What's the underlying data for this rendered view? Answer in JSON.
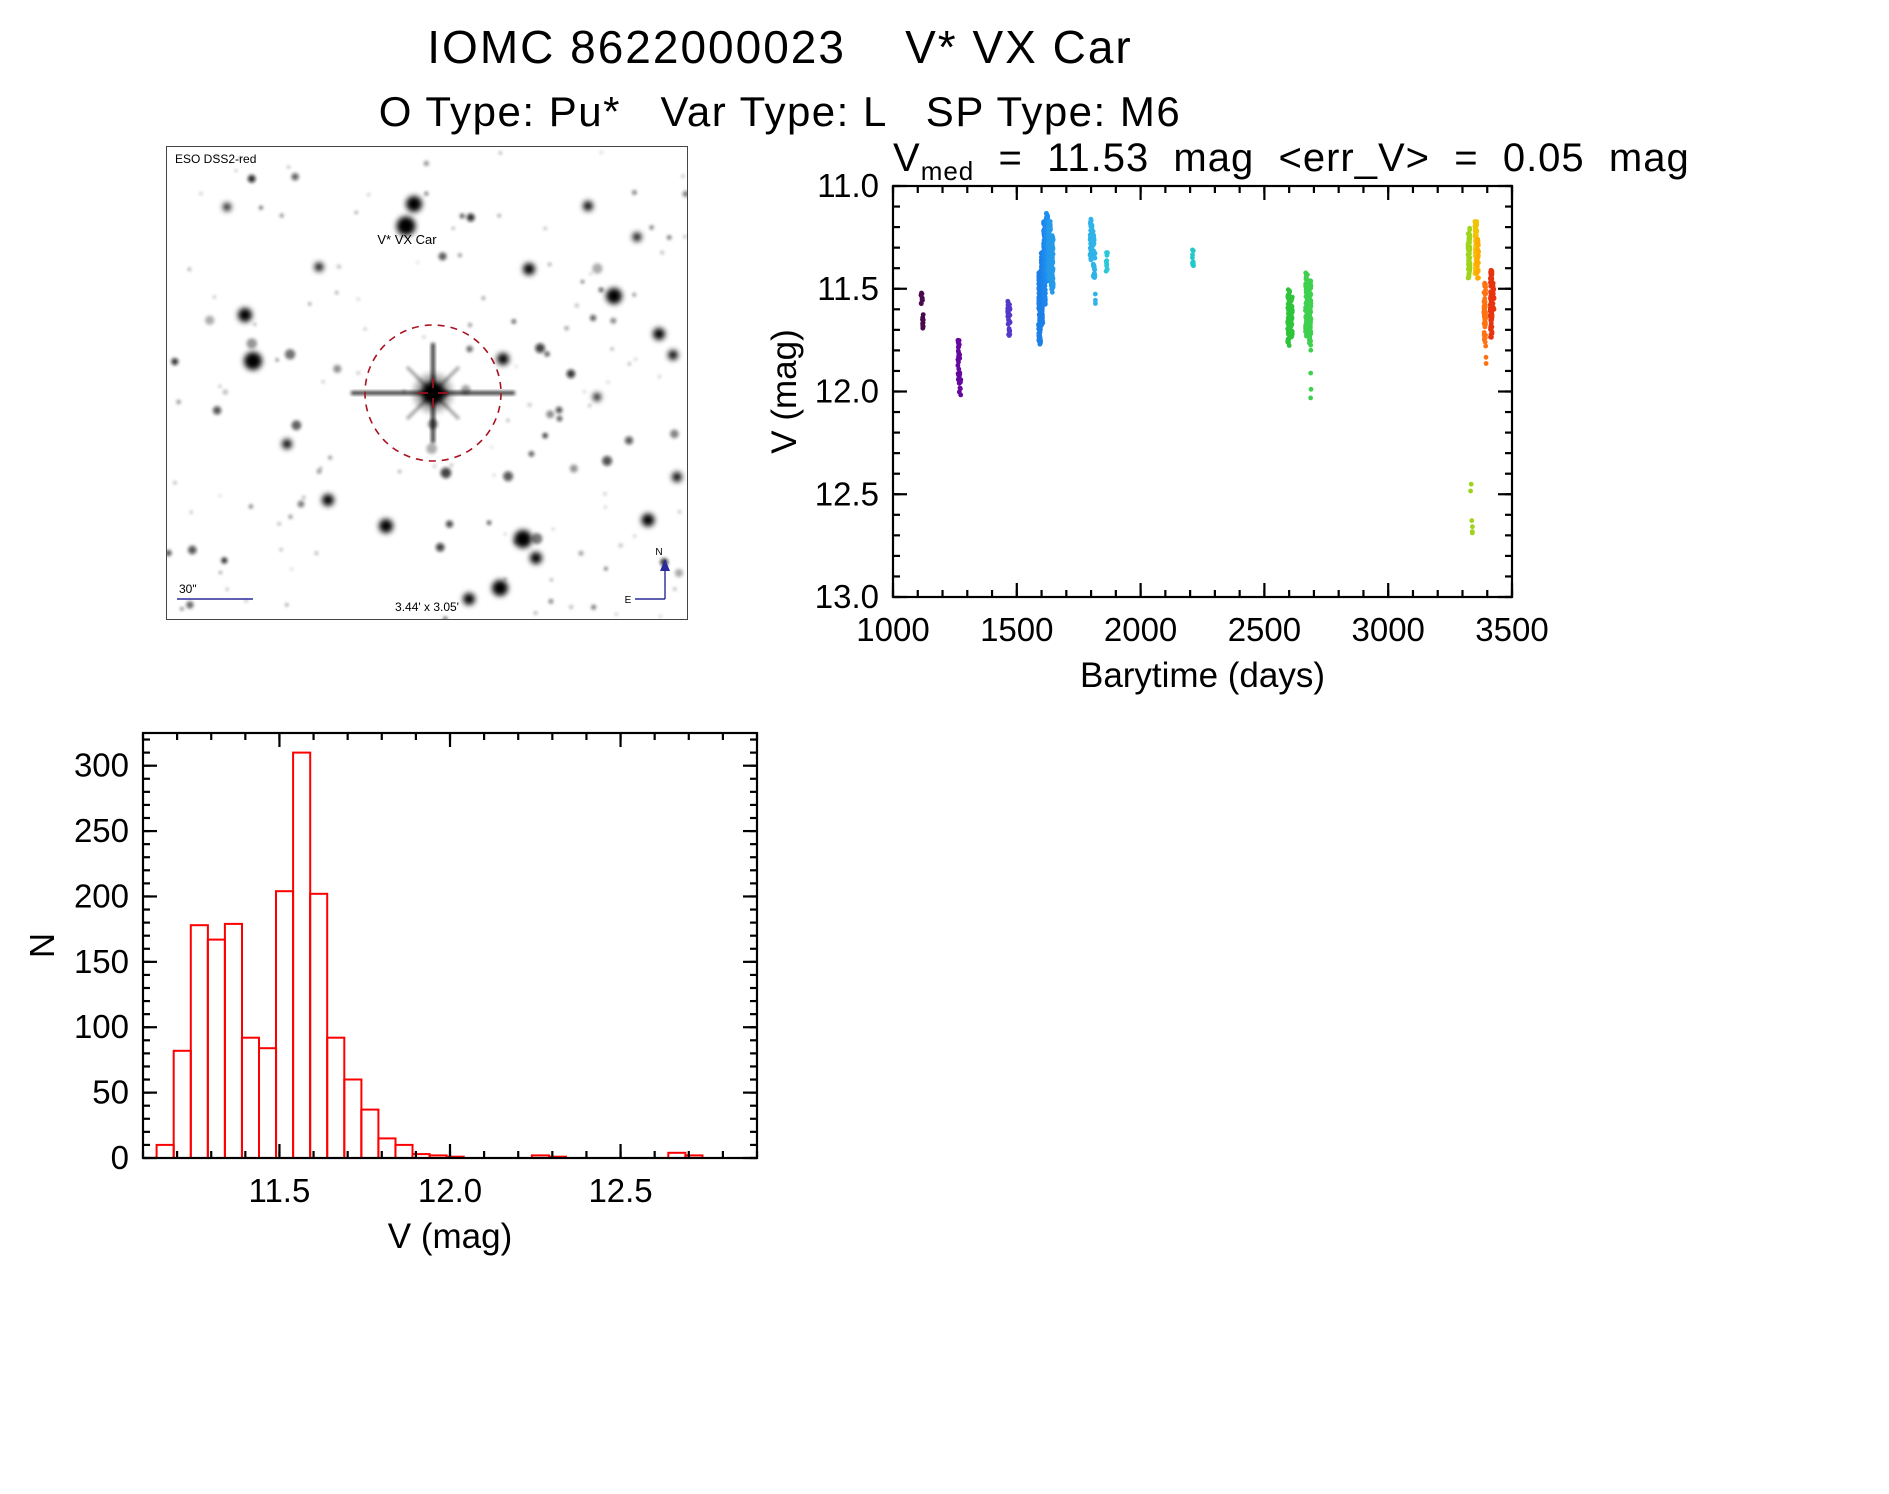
{
  "page": {
    "title": "IOMC 8622000023    V* VX Car",
    "subtitle": "O Type: Pu*   Var Type: L   SP Type: M6"
  },
  "finder": {
    "survey_label": "ESO DSS2-red",
    "target_label": "V* VX Car",
    "scale_label": "30\"",
    "size_label": "3.44' x 3.05'",
    "compass_north": "N",
    "compass_east": "E",
    "accent_color": "#aa1122",
    "annotation_color": "#2a2a9a"
  },
  "chart_data": [
    {
      "type": "scatter",
      "title_main": "V",
      "title_sub": "med",
      "title_rest": "  =  11.53  mag  <err_V>  =  0.05  mag",
      "xlabel": "Barytime  (days)",
      "ylabel": "V  (mag)",
      "xlim": [
        1000,
        3500
      ],
      "ylim": [
        11.0,
        13.0
      ],
      "xticks": [
        1000,
        1500,
        2000,
        2500,
        3000,
        3500
      ],
      "yticks": [
        11.0,
        11.5,
        12.0,
        12.5,
        13.0
      ],
      "x_minor": 100,
      "y_minor": 0.1,
      "y_tick_decimals": 1,
      "grid": false,
      "legend": "none",
      "clusters": [
        {
          "x": 1116,
          "dx": 6,
          "v1": 11.51,
          "v2": 11.58,
          "n": 10,
          "color": "#4a0a50"
        },
        {
          "x": 1120,
          "dx": 6,
          "v1": 11.62,
          "v2": 11.71,
          "n": 12,
          "color": "#4a0a50"
        },
        {
          "x": 1266,
          "dx": 8,
          "v1": 11.73,
          "v2": 11.95,
          "n": 30,
          "color": "#65089d"
        },
        {
          "x": 1270,
          "dx": 8,
          "v1": 11.9,
          "v2": 12.03,
          "n": 10,
          "color": "#65089d"
        },
        {
          "x": 1468,
          "dx": 10,
          "v1": 11.55,
          "v2": 11.74,
          "n": 35,
          "color": "#5438c8"
        },
        {
          "x": 1592,
          "dx": 8,
          "v1": 11.42,
          "v2": 11.77,
          "n": 110,
          "color": "#1d7fe8"
        },
        {
          "x": 1602,
          "dx": 8,
          "v1": 11.32,
          "v2": 11.68,
          "n": 140,
          "color": "#1d7fe8"
        },
        {
          "x": 1612,
          "dx": 8,
          "v1": 11.17,
          "v2": 11.58,
          "n": 160,
          "color": "#1d86ee"
        },
        {
          "x": 1622,
          "dx": 8,
          "v1": 11.13,
          "v2": 11.47,
          "n": 150,
          "color": "#1d8ff2"
        },
        {
          "x": 1632,
          "dx": 8,
          "v1": 11.17,
          "v2": 11.45,
          "n": 100,
          "color": "#259ae8"
        },
        {
          "x": 1643,
          "dx": 8,
          "v1": 11.24,
          "v2": 11.52,
          "n": 70,
          "color": "#259ae8"
        },
        {
          "x": 1800,
          "dx": 8,
          "v1": 11.16,
          "v2": 11.36,
          "n": 40,
          "color": "#2fb3e8"
        },
        {
          "x": 1812,
          "dx": 8,
          "v1": 11.22,
          "v2": 11.46,
          "n": 30,
          "color": "#2fb3e8"
        },
        {
          "x": 1818,
          "dx": 4,
          "v1": 11.52,
          "v2": 11.58,
          "n": 3,
          "color": "#2fb3e8"
        },
        {
          "x": 1863,
          "dx": 6,
          "v1": 11.32,
          "v2": 11.44,
          "n": 12,
          "color": "#2cc8d8"
        },
        {
          "x": 2212,
          "dx": 6,
          "v1": 11.31,
          "v2": 11.39,
          "n": 10,
          "color": "#23c8c8"
        },
        {
          "x": 2598,
          "dx": 8,
          "v1": 11.5,
          "v2": 11.78,
          "n": 60,
          "color": "#2fc43a"
        },
        {
          "x": 2610,
          "dx": 6,
          "v1": 11.54,
          "v2": 11.74,
          "n": 30,
          "color": "#2fc43a"
        },
        {
          "x": 2670,
          "dx": 8,
          "v1": 11.42,
          "v2": 11.73,
          "n": 80,
          "color": "#3ed04e"
        },
        {
          "x": 2684,
          "dx": 8,
          "v1": 11.46,
          "v2": 11.8,
          "n": 80,
          "color": "#3ed04e"
        },
        {
          "x": 2688,
          "dx": 4,
          "v1": 11.9,
          "v2": 12.06,
          "n": 3,
          "color": "#3ed04e"
        },
        {
          "x": 3326,
          "dx": 8,
          "v1": 11.2,
          "v2": 11.46,
          "n": 60,
          "color": "#9fd41c"
        },
        {
          "x": 3335,
          "dx": 5,
          "v1": 12.44,
          "v2": 12.5,
          "n": 2,
          "color": "#9fd41c"
        },
        {
          "x": 3338,
          "dx": 5,
          "v1": 12.6,
          "v2": 12.77,
          "n": 4,
          "color": "#9fd41c"
        },
        {
          "x": 3354,
          "dx": 8,
          "v1": 11.17,
          "v2": 11.43,
          "n": 50,
          "color": "#f0c400"
        },
        {
          "x": 3362,
          "dx": 6,
          "v1": 11.25,
          "v2": 11.45,
          "n": 25,
          "color": "#ffaa00"
        },
        {
          "x": 3390,
          "dx": 8,
          "v1": 11.47,
          "v2": 11.79,
          "n": 60,
          "color": "#ff7212"
        },
        {
          "x": 3396,
          "dx": 5,
          "v1": 11.82,
          "v2": 11.87,
          "n": 2,
          "color": "#ff7212"
        },
        {
          "x": 3416,
          "dx": 8,
          "v1": 11.4,
          "v2": 11.74,
          "n": 80,
          "color": "#e8340e"
        },
        {
          "x": 3425,
          "dx": 5,
          "v1": 11.47,
          "v2": 11.6,
          "n": 15,
          "color": "#e8340e"
        }
      ]
    },
    {
      "type": "histogram",
      "xlabel": "V  (mag)",
      "ylabel": "N",
      "xlim": [
        11.1,
        12.9
      ],
      "ylim": [
        0,
        325
      ],
      "xticks": [
        11.5,
        12.0,
        12.5
      ],
      "yticks": [
        0,
        50,
        100,
        150,
        200,
        250,
        300
      ],
      "x_minor": 0.1,
      "y_minor": 10,
      "x_tick_decimals": 1,
      "bar_color": "#ff0000",
      "bin_start": 11.14,
      "bin_width": 0.05,
      "counts": [
        10,
        82,
        178,
        167,
        179,
        92,
        84,
        204,
        310,
        202,
        92,
        60,
        37,
        15,
        10,
        3,
        2,
        1,
        0,
        0,
        0,
        0,
        2,
        1,
        0,
        0,
        0,
        0,
        0,
        0,
        4,
        2,
        0
      ],
      "grid": false,
      "legend": "none"
    }
  ]
}
